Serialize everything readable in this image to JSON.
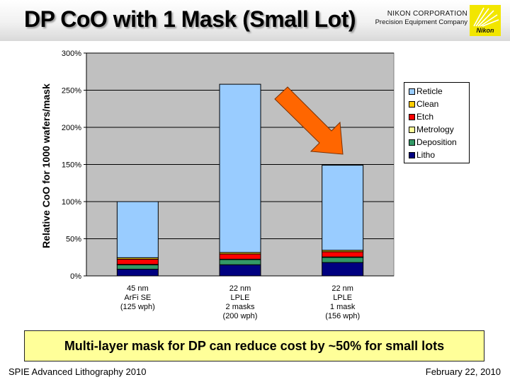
{
  "header": {
    "title": "DP CoO with 1 Mask (Small Lot)",
    "company_name": "NIKON CORPORATION",
    "company_division": "Precision Equipment Company",
    "logo_text": "Nikon"
  },
  "chart_data": {
    "type": "bar",
    "stacked": true,
    "title": "",
    "xlabel": "",
    "ylabel": "Relative CoO for 1000 wafers/mask",
    "ylim": [
      0,
      300
    ],
    "y_ticks": [
      "0%",
      "50%",
      "100%",
      "150%",
      "200%",
      "250%",
      "300%"
    ],
    "y_tick_values": [
      0,
      50,
      100,
      150,
      200,
      250,
      300
    ],
    "grid": true,
    "legend_position": "right",
    "categories": [
      [
        "45 nm",
        "ArFi SE",
        "(125 wph)"
      ],
      [
        "22 nm",
        "LPLE",
        "2 masks",
        "(200 wph)"
      ],
      [
        "22 nm",
        "LPLE",
        "1 mask",
        "(156 wph)"
      ]
    ],
    "series": [
      {
        "name": "Litho",
        "color": "#000080",
        "values": [
          9,
          15,
          18
        ]
      },
      {
        "name": "Deposition",
        "color": "#339966",
        "values": [
          6,
          7,
          7
        ]
      },
      {
        "name": "Metrology",
        "color": "#ffff99",
        "values": [
          0.5,
          0.5,
          0.5
        ]
      },
      {
        "name": "Etch",
        "color": "#ff0000",
        "values": [
          7,
          7,
          7
        ]
      },
      {
        "name": "Clean",
        "color": "#ffcc00",
        "values": [
          2,
          2,
          2
        ]
      },
      {
        "name": "Reticle",
        "color": "#99ccff",
        "values": [
          75.5,
          226.5,
          114.5
        ]
      }
    ],
    "legend_order": [
      "Reticle",
      "Clean",
      "Etch",
      "Metrology",
      "Deposition",
      "Litho"
    ],
    "plot_background": "#c0c0c0",
    "annotation": {
      "type": "arrow",
      "color": "#ff6600",
      "points_to": "22 nm LPLE 1 mask"
    }
  },
  "callout": {
    "text": "Multi-layer mask for DP can reduce cost by ~50% for small lots",
    "background": "#ffff99"
  },
  "footer": {
    "left": "SPIE Advanced Lithography 2010",
    "right": "February 22, 2010"
  }
}
